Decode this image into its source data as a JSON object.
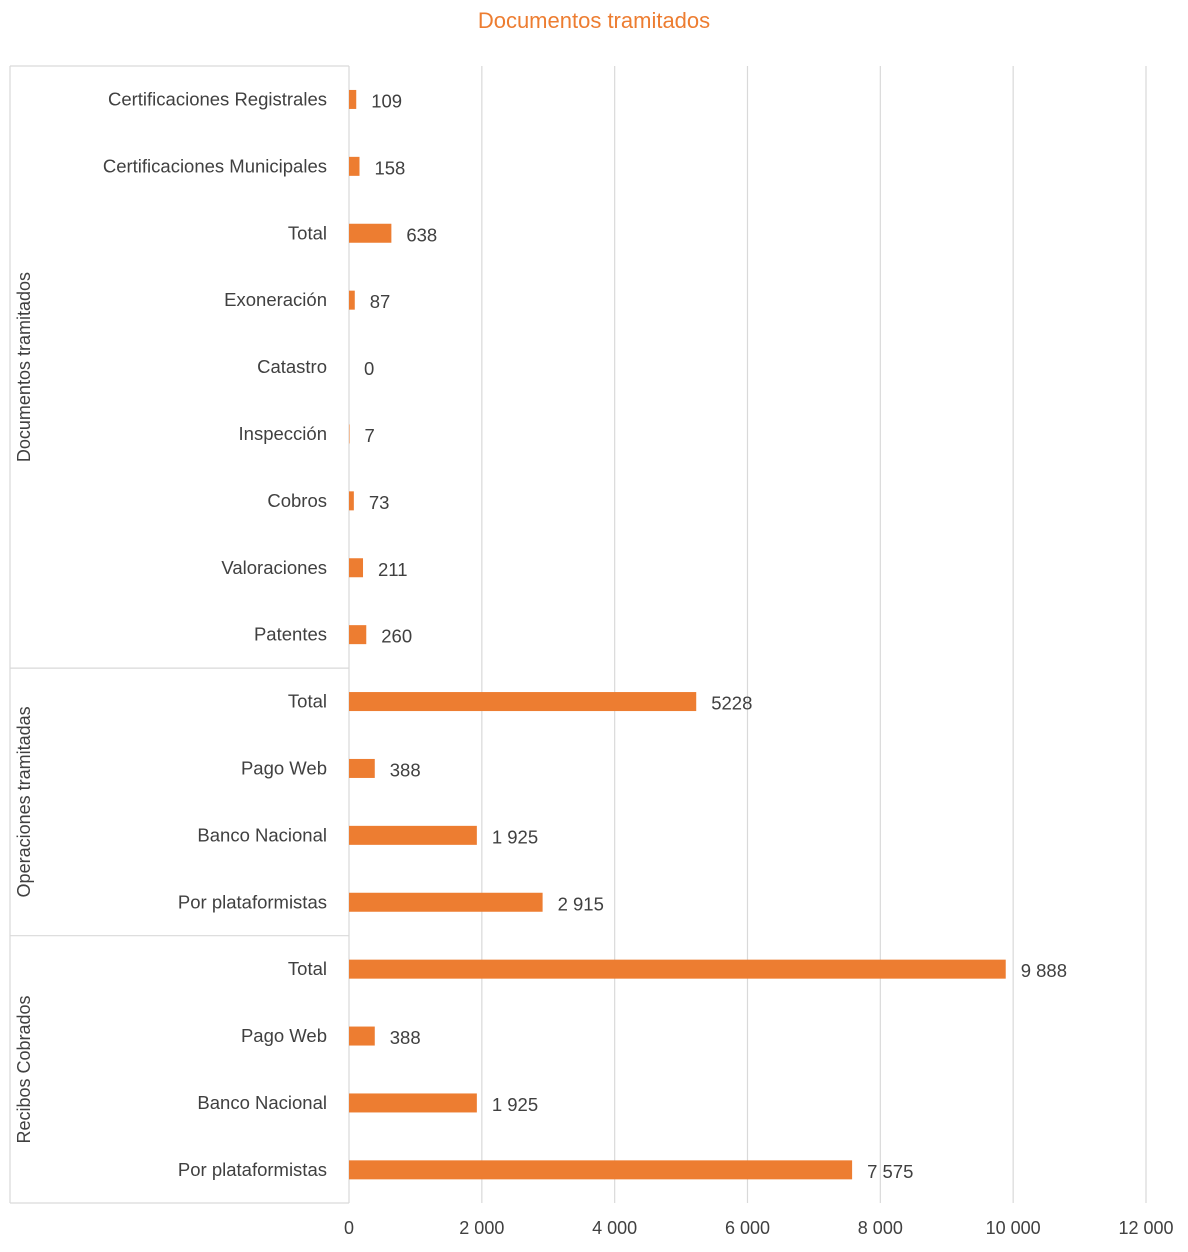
{
  "chart_data": {
    "type": "bar",
    "orientation": "horizontal",
    "title": "Documentos tramitados",
    "xlim": [
      0,
      12000
    ],
    "x_ticks": [
      0,
      2000,
      4000,
      6000,
      8000,
      10000,
      12000
    ],
    "x_tick_labels": [
      "0",
      "2 000",
      "4 000",
      "6 000",
      "8 000",
      "10 000",
      "12 000"
    ],
    "grid": "vertical",
    "legend": "none",
    "colors": {
      "bar": "#ED7D31",
      "title": "#ED7D31",
      "grid": "#D9D9D9",
      "text": "#404040"
    },
    "groups": [
      {
        "name": "Documentos tramitados",
        "items": [
          {
            "label": "Certificaciones Registrales",
            "value": 109,
            "value_label": "109"
          },
          {
            "label": "Certificaciones Municipales",
            "value": 158,
            "value_label": "158"
          },
          {
            "label": "Total",
            "value": 638,
            "value_label": "638"
          },
          {
            "label": "Exoneración",
            "value": 87,
            "value_label": "87"
          },
          {
            "label": "Catastro",
            "value": 0,
            "value_label": "0"
          },
          {
            "label": "Inspección",
            "value": 7,
            "value_label": "7"
          },
          {
            "label": "Cobros",
            "value": 73,
            "value_label": "73"
          },
          {
            "label": "Valoraciones",
            "value": 211,
            "value_label": "211"
          },
          {
            "label": "Patentes",
            "value": 260,
            "value_label": "260"
          }
        ]
      },
      {
        "name": "Operaciones tramitadas",
        "items": [
          {
            "label": "Total",
            "value": 5228,
            "value_label": "5228"
          },
          {
            "label": "Pago Web",
            "value": 388,
            "value_label": "388"
          },
          {
            "label": "Banco Nacional",
            "value": 1925,
            "value_label": "1 925"
          },
          {
            "label": "Por plataformistas",
            "value": 2915,
            "value_label": "2 915"
          }
        ]
      },
      {
        "name": "Recibos Cobrados",
        "items": [
          {
            "label": "Total",
            "value": 9888,
            "value_label": "9 888"
          },
          {
            "label": "Pago Web",
            "value": 388,
            "value_label": "388"
          },
          {
            "label": "Banco Nacional",
            "value": 1925,
            "value_label": "1 925"
          },
          {
            "label": "Por plataformistas",
            "value": 7575,
            "value_label": "7 575"
          }
        ]
      }
    ]
  }
}
